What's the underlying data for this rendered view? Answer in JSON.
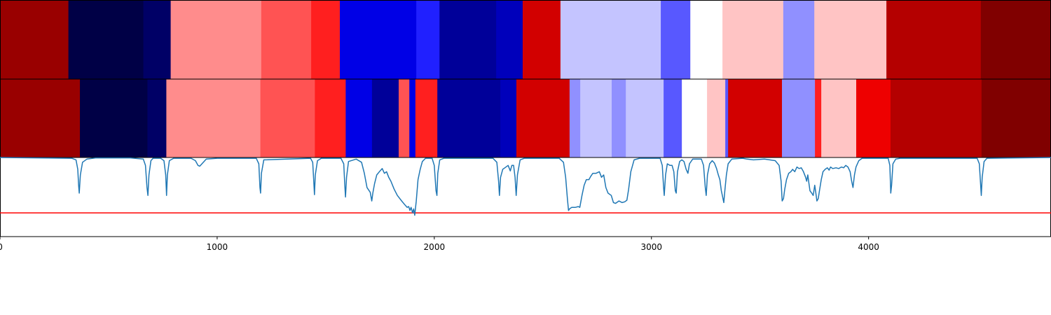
{
  "chart_data": {
    "type": "heatmap",
    "title": "",
    "xlabel": "",
    "ylabel": "",
    "xlim": [
      0,
      4840
    ],
    "x_ticks": [
      0,
      1000,
      2000,
      3000,
      4000
    ],
    "x_tick_labels": [
      "0",
      "1000",
      "2000",
      "3000",
      "4000"
    ],
    "colormap": "seismic",
    "top_row_segments": [
      {
        "start": 0,
        "end": 315,
        "color": "#990000"
      },
      {
        "start": 315,
        "end": 660,
        "color": "#000046"
      },
      {
        "start": 660,
        "end": 786,
        "color": "#000066"
      },
      {
        "start": 786,
        "end": 1203,
        "color": "#ff8c8c"
      },
      {
        "start": 1203,
        "end": 1433,
        "color": "#ff5353"
      },
      {
        "start": 1433,
        "end": 1565,
        "color": "#ff1f1f"
      },
      {
        "start": 1565,
        "end": 1917,
        "color": "#0000e6"
      },
      {
        "start": 1917,
        "end": 2024,
        "color": "#2020ff"
      },
      {
        "start": 2024,
        "end": 2285,
        "color": "#000099"
      },
      {
        "start": 2285,
        "end": 2407,
        "color": "#0000bb"
      },
      {
        "start": 2407,
        "end": 2581,
        "color": "#d20000"
      },
      {
        "start": 2581,
        "end": 3043,
        "color": "#c4c4ff"
      },
      {
        "start": 3043,
        "end": 3179,
        "color": "#5858ff"
      },
      {
        "start": 3179,
        "end": 3327,
        "color": "#ffffff"
      },
      {
        "start": 3327,
        "end": 3607,
        "color": "#ffc4c4"
      },
      {
        "start": 3607,
        "end": 3750,
        "color": "#9090ff"
      },
      {
        "start": 3750,
        "end": 4082,
        "color": "#ffc4c4"
      },
      {
        "start": 4082,
        "end": 4517,
        "color": "#b40000"
      },
      {
        "start": 4517,
        "end": 4840,
        "color": "#800000"
      }
    ],
    "bottom_row_segments": [
      {
        "start": 0,
        "end": 368,
        "color": "#990000"
      },
      {
        "start": 368,
        "end": 679,
        "color": "#000046"
      },
      {
        "start": 679,
        "end": 766,
        "color": "#000066"
      },
      {
        "start": 766,
        "end": 1199,
        "color": "#ff8c8c"
      },
      {
        "start": 1199,
        "end": 1450,
        "color": "#ff5353"
      },
      {
        "start": 1450,
        "end": 1592,
        "color": "#ff1f1f"
      },
      {
        "start": 1592,
        "end": 1713,
        "color": "#0000e6"
      },
      {
        "start": 1713,
        "end": 1836,
        "color": "#000099"
      },
      {
        "start": 1836,
        "end": 1885,
        "color": "#ff5353"
      },
      {
        "start": 1885,
        "end": 1913,
        "color": "#0000e6"
      },
      {
        "start": 1913,
        "end": 2014,
        "color": "#ff1f1f"
      },
      {
        "start": 2014,
        "end": 2304,
        "color": "#000099"
      },
      {
        "start": 2304,
        "end": 2378,
        "color": "#0000bb"
      },
      {
        "start": 2378,
        "end": 2623,
        "color": "#d20000"
      },
      {
        "start": 2623,
        "end": 2672,
        "color": "#9090ff"
      },
      {
        "start": 2672,
        "end": 2817,
        "color": "#c4c4ff"
      },
      {
        "start": 2817,
        "end": 2882,
        "color": "#9090ff"
      },
      {
        "start": 2882,
        "end": 3056,
        "color": "#c4c4ff"
      },
      {
        "start": 3056,
        "end": 3140,
        "color": "#5858ff"
      },
      {
        "start": 3140,
        "end": 3256,
        "color": "#ffffff"
      },
      {
        "start": 3256,
        "end": 3340,
        "color": "#ffc4c4"
      },
      {
        "start": 3340,
        "end": 3353,
        "color": "#5858ff"
      },
      {
        "start": 3353,
        "end": 3601,
        "color": "#d20000"
      },
      {
        "start": 3601,
        "end": 3753,
        "color": "#9090ff"
      },
      {
        "start": 3753,
        "end": 3782,
        "color": "#ff1f1f"
      },
      {
        "start": 3782,
        "end": 3943,
        "color": "#ffc4c4"
      },
      {
        "start": 3943,
        "end": 4101,
        "color": "#ee0000"
      },
      {
        "start": 4101,
        "end": 4520,
        "color": "#b40000"
      },
      {
        "start": 4520,
        "end": 4840,
        "color": "#800000"
      }
    ],
    "line_series": {
      "color": "#1f77b4",
      "ylim": [
        0,
        1
      ],
      "threshold": {
        "value": 0.3,
        "color": "#ff0000"
      },
      "points": [
        [
          0,
          1.0
        ],
        [
          330,
          0.99
        ],
        [
          350,
          0.97
        ],
        [
          358,
          0.85
        ],
        [
          362,
          0.65
        ],
        [
          365,
          0.55
        ],
        [
          370,
          0.78
        ],
        [
          380,
          0.94
        ],
        [
          400,
          0.98
        ],
        [
          440,
          0.995
        ],
        [
          600,
          0.995
        ],
        [
          660,
          0.98
        ],
        [
          670,
          0.9
        ],
        [
          677,
          0.62
        ],
        [
          681,
          0.52
        ],
        [
          686,
          0.78
        ],
        [
          695,
          0.96
        ],
        [
          705,
          0.99
        ],
        [
          740,
          0.99
        ],
        [
          755,
          0.96
        ],
        [
          763,
          0.78
        ],
        [
          767,
          0.52
        ],
        [
          771,
          0.78
        ],
        [
          780,
          0.96
        ],
        [
          800,
          0.99
        ],
        [
          880,
          0.99
        ],
        [
          900,
          0.96
        ],
        [
          912,
          0.9
        ],
        [
          920,
          0.89
        ],
        [
          930,
          0.92
        ],
        [
          950,
          0.98
        ],
        [
          1000,
          0.99
        ],
        [
          1180,
          0.99
        ],
        [
          1192,
          0.92
        ],
        [
          1197,
          0.62
        ],
        [
          1200,
          0.55
        ],
        [
          1204,
          0.8
        ],
        [
          1215,
          0.97
        ],
        [
          1430,
          0.99
        ],
        [
          1440,
          0.94
        ],
        [
          1445,
          0.7
        ],
        [
          1448,
          0.53
        ],
        [
          1452,
          0.78
        ],
        [
          1462,
          0.96
        ],
        [
          1480,
          0.99
        ],
        [
          1570,
          0.99
        ],
        [
          1583,
          0.92
        ],
        [
          1588,
          0.65
        ],
        [
          1591,
          0.5
        ],
        [
          1596,
          0.75
        ],
        [
          1605,
          0.95
        ],
        [
          1640,
          0.98
        ],
        [
          1665,
          0.94
        ],
        [
          1678,
          0.8
        ],
        [
          1690,
          0.62
        ],
        [
          1705,
          0.56
        ],
        [
          1712,
          0.45
        ],
        [
          1717,
          0.55
        ],
        [
          1725,
          0.67
        ],
        [
          1735,
          0.78
        ],
        [
          1750,
          0.83
        ],
        [
          1760,
          0.86
        ],
        [
          1770,
          0.8
        ],
        [
          1780,
          0.82
        ],
        [
          1790,
          0.75
        ],
        [
          1800,
          0.7
        ],
        [
          1815,
          0.6
        ],
        [
          1830,
          0.52
        ],
        [
          1850,
          0.45
        ],
        [
          1865,
          0.4
        ],
        [
          1875,
          0.37
        ],
        [
          1882,
          0.38
        ],
        [
          1888,
          0.33
        ],
        [
          1893,
          0.37
        ],
        [
          1900,
          0.3
        ],
        [
          1905,
          0.35
        ],
        [
          1910,
          0.27
        ],
        [
          1917,
          0.45
        ],
        [
          1925,
          0.72
        ],
        [
          1935,
          0.85
        ],
        [
          1945,
          0.95
        ],
        [
          1960,
          0.99
        ],
        [
          1990,
          0.99
        ],
        [
          2000,
          0.9
        ],
        [
          2008,
          0.58
        ],
        [
          2012,
          0.52
        ],
        [
          2016,
          0.8
        ],
        [
          2025,
          0.97
        ],
        [
          2045,
          0.99
        ],
        [
          2270,
          0.99
        ],
        [
          2288,
          0.94
        ],
        [
          2296,
          0.7
        ],
        [
          2300,
          0.52
        ],
        [
          2305,
          0.75
        ],
        [
          2315,
          0.85
        ],
        [
          2325,
          0.87
        ],
        [
          2340,
          0.9
        ],
        [
          2350,
          0.83
        ],
        [
          2357,
          0.9
        ],
        [
          2365,
          0.9
        ],
        [
          2372,
          0.75
        ],
        [
          2377,
          0.52
        ],
        [
          2383,
          0.78
        ],
        [
          2395,
          0.97
        ],
        [
          2415,
          0.99
        ],
        [
          2575,
          0.99
        ],
        [
          2595,
          0.94
        ],
        [
          2605,
          0.75
        ],
        [
          2613,
          0.48
        ],
        [
          2618,
          0.33
        ],
        [
          2623,
          0.35
        ],
        [
          2633,
          0.37
        ],
        [
          2650,
          0.37
        ],
        [
          2663,
          0.38
        ],
        [
          2670,
          0.37
        ],
        [
          2680,
          0.52
        ],
        [
          2690,
          0.65
        ],
        [
          2700,
          0.72
        ],
        [
          2712,
          0.72
        ],
        [
          2720,
          0.76
        ],
        [
          2730,
          0.8
        ],
        [
          2745,
          0.8
        ],
        [
          2760,
          0.82
        ],
        [
          2770,
          0.75
        ],
        [
          2780,
          0.78
        ],
        [
          2790,
          0.62
        ],
        [
          2800,
          0.55
        ],
        [
          2815,
          0.52
        ],
        [
          2825,
          0.43
        ],
        [
          2835,
          0.42
        ],
        [
          2850,
          0.45
        ],
        [
          2865,
          0.43
        ],
        [
          2877,
          0.44
        ],
        [
          2887,
          0.46
        ],
        [
          2895,
          0.6
        ],
        [
          2905,
          0.82
        ],
        [
          2920,
          0.97
        ],
        [
          2945,
          0.99
        ],
        [
          3040,
          0.99
        ],
        [
          3050,
          0.9
        ],
        [
          3056,
          0.62
        ],
        [
          3059,
          0.52
        ],
        [
          3065,
          0.78
        ],
        [
          3073,
          0.92
        ],
        [
          3085,
          0.9
        ],
        [
          3095,
          0.9
        ],
        [
          3103,
          0.82
        ],
        [
          3110,
          0.58
        ],
        [
          3114,
          0.55
        ],
        [
          3120,
          0.82
        ],
        [
          3130,
          0.95
        ],
        [
          3140,
          0.97
        ],
        [
          3150,
          0.95
        ],
        [
          3160,
          0.85
        ],
        [
          3168,
          0.8
        ],
        [
          3175,
          0.92
        ],
        [
          3190,
          0.98
        ],
        [
          3230,
          0.98
        ],
        [
          3240,
          0.9
        ],
        [
          3248,
          0.62
        ],
        [
          3252,
          0.52
        ],
        [
          3258,
          0.78
        ],
        [
          3268,
          0.92
        ],
        [
          3280,
          0.96
        ],
        [
          3290,
          0.93
        ],
        [
          3300,
          0.86
        ],
        [
          3308,
          0.78
        ],
        [
          3315,
          0.72
        ],
        [
          3322,
          0.58
        ],
        [
          3328,
          0.5
        ],
        [
          3333,
          0.43
        ],
        [
          3338,
          0.58
        ],
        [
          3345,
          0.78
        ],
        [
          3353,
          0.92
        ],
        [
          3370,
          0.98
        ],
        [
          3420,
          0.99
        ],
        [
          3440,
          0.98
        ],
        [
          3470,
          0.97
        ],
        [
          3520,
          0.98
        ],
        [
          3570,
          0.96
        ],
        [
          3588,
          0.9
        ],
        [
          3597,
          0.7
        ],
        [
          3602,
          0.45
        ],
        [
          3608,
          0.48
        ],
        [
          3614,
          0.6
        ],
        [
          3622,
          0.72
        ],
        [
          3632,
          0.8
        ],
        [
          3642,
          0.82
        ],
        [
          3650,
          0.85
        ],
        [
          3660,
          0.82
        ],
        [
          3670,
          0.88
        ],
        [
          3680,
          0.86
        ],
        [
          3690,
          0.87
        ],
        [
          3700,
          0.82
        ],
        [
          3710,
          0.75
        ],
        [
          3715,
          0.7
        ],
        [
          3720,
          0.78
        ],
        [
          3725,
          0.68
        ],
        [
          3730,
          0.58
        ],
        [
          3738,
          0.55
        ],
        [
          3745,
          0.52
        ],
        [
          3752,
          0.65
        ],
        [
          3757,
          0.55
        ],
        [
          3762,
          0.45
        ],
        [
          3768,
          0.48
        ],
        [
          3775,
          0.6
        ],
        [
          3782,
          0.72
        ],
        [
          3790,
          0.82
        ],
        [
          3800,
          0.85
        ],
        [
          3810,
          0.87
        ],
        [
          3818,
          0.84
        ],
        [
          3825,
          0.88
        ],
        [
          3835,
          0.86
        ],
        [
          3850,
          0.87
        ],
        [
          3862,
          0.86
        ],
        [
          3875,
          0.88
        ],
        [
          3885,
          0.87
        ],
        [
          3895,
          0.9
        ],
        [
          3905,
          0.88
        ],
        [
          3915,
          0.82
        ],
        [
          3922,
          0.7
        ],
        [
          3928,
          0.62
        ],
        [
          3935,
          0.78
        ],
        [
          3942,
          0.88
        ],
        [
          3955,
          0.96
        ],
        [
          3970,
          0.99
        ],
        [
          4090,
          0.99
        ],
        [
          4098,
          0.9
        ],
        [
          4102,
          0.55
        ],
        [
          4106,
          0.65
        ],
        [
          4112,
          0.92
        ],
        [
          4125,
          0.98
        ],
        [
          4145,
          0.99
        ],
        [
          4500,
          0.99
        ],
        [
          4510,
          0.92
        ],
        [
          4516,
          0.65
        ],
        [
          4519,
          0.52
        ],
        [
          4523,
          0.75
        ],
        [
          4532,
          0.95
        ],
        [
          4545,
          0.99
        ],
        [
          4840,
          1.0
        ]
      ]
    }
  }
}
